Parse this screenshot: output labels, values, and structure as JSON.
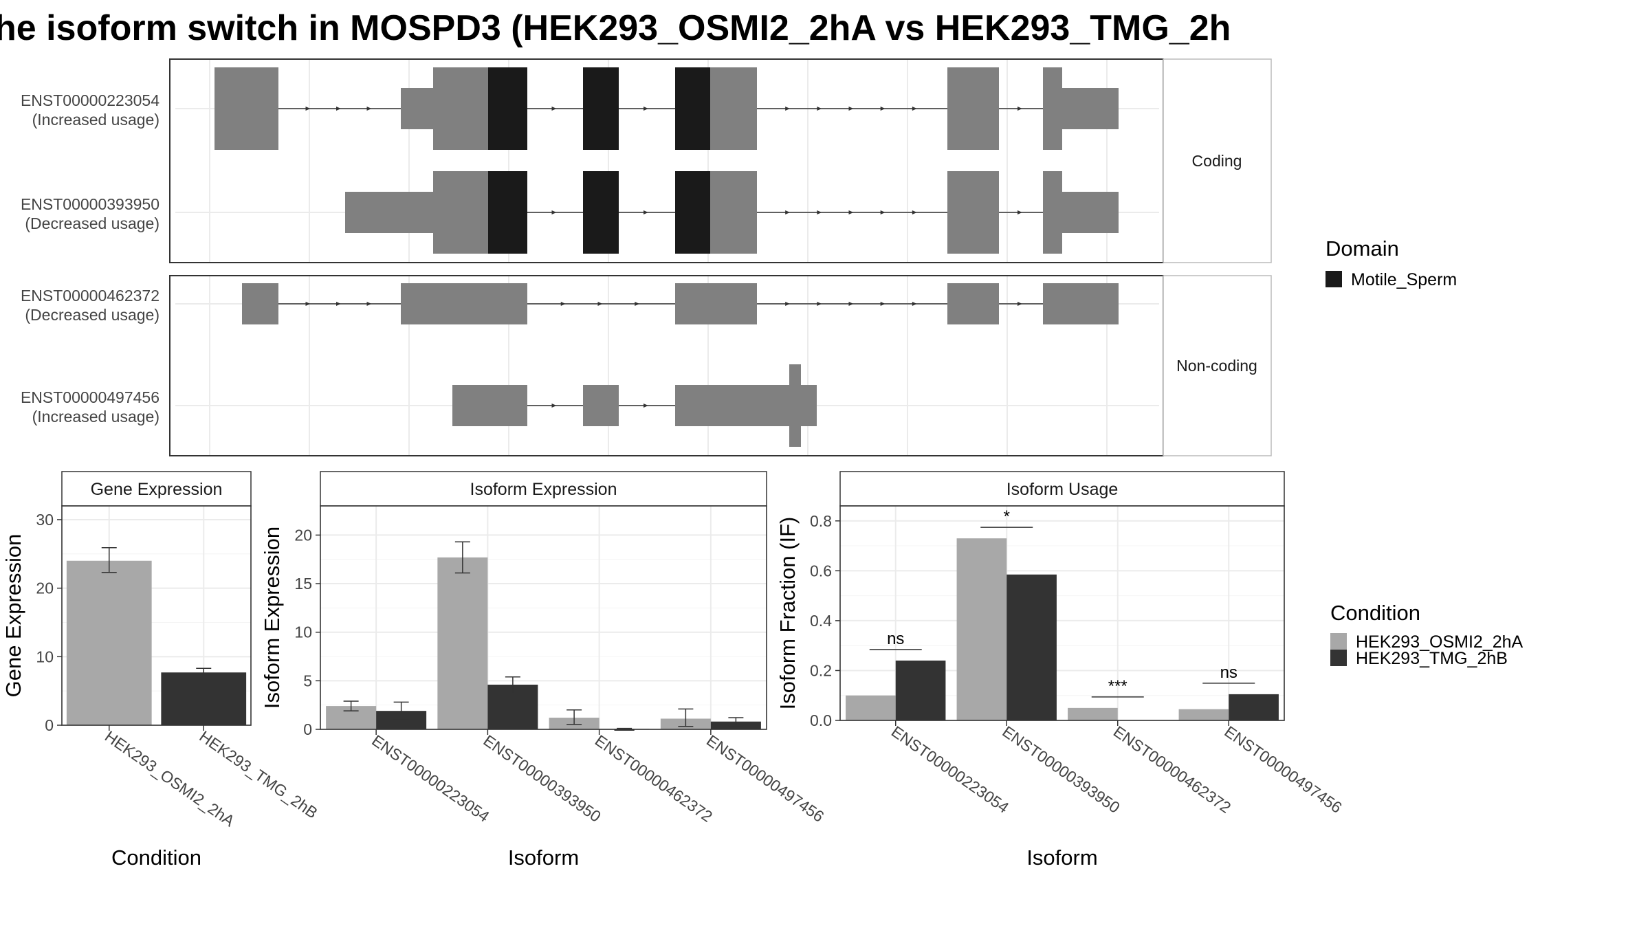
{
  "title": "he isoform switch in MOSPD3 (HEK293_OSMI2_2hA vs HEK293_TMG_2h",
  "colors": {
    "condA": "#a8a8a8",
    "condB": "#333333",
    "exon": "#808080",
    "domain": "#1a1a1a",
    "grid": "#ebebeb",
    "strip": "#ffffff"
  },
  "chart_data": [
    {
      "type": "diagram",
      "name": "transcript-structure",
      "facets": [
        {
          "label": "Coding",
          "transcripts": [
            {
              "id": "ENST00000223054",
              "note": "(Increased usage)"
            },
            {
              "id": "ENST00000393950",
              "note": "(Decreased usage)"
            }
          ]
        },
        {
          "label": "Non-coding",
          "transcripts": [
            {
              "id": "ENST00000462372",
              "note": "(Decreased usage)"
            },
            {
              "id": "ENST00000497456",
              "note": "(Increased usage)"
            }
          ]
        }
      ],
      "legend": {
        "title": "Domain",
        "entries": [
          "Motile_Sperm"
        ]
      }
    },
    {
      "type": "bar",
      "name": "gene-expression",
      "strip": "Gene Expression",
      "xlabel": "Condition",
      "ylabel": "Gene Expression",
      "ylim": [
        0,
        32
      ],
      "yticks": [
        0,
        10,
        20,
        30
      ],
      "categories": [
        "HEK293_OSMI2_2hA",
        "HEK293_TMG_2hB"
      ],
      "values": [
        24.0,
        7.7
      ],
      "errors": [
        [
          22.3,
          25.9
        ],
        [
          7.2,
          8.3
        ]
      ]
    },
    {
      "type": "bar",
      "name": "isoform-expression",
      "strip": "Isoform Expression",
      "xlabel": "Isoform",
      "ylabel": "Isoform Expression",
      "ylim": [
        0,
        23
      ],
      "yticks": [
        0,
        5,
        10,
        15,
        20
      ],
      "categories": [
        "ENST00000223054",
        "ENST00000393950",
        "ENST00000462372",
        "ENST00000497456"
      ],
      "series": [
        {
          "condition": "HEK293_OSMI2_2hA",
          "values": [
            2.4,
            17.7,
            1.2,
            1.1
          ],
          "errors": [
            [
              1.9,
              2.9
            ],
            [
              16.1,
              19.3
            ],
            [
              0.5,
              2.0
            ],
            [
              0.3,
              2.1
            ]
          ]
        },
        {
          "condition": "HEK293_TMG_2hB",
          "values": [
            1.9,
            4.6,
            0.05,
            0.8
          ],
          "errors": [
            [
              1.0,
              2.8
            ],
            [
              3.7,
              5.4
            ],
            [
              0.0,
              0.1
            ],
            [
              0.4,
              1.2
            ]
          ]
        }
      ]
    },
    {
      "type": "bar",
      "name": "isoform-usage",
      "strip": "Isoform Usage",
      "xlabel": "Isoform",
      "ylabel": "Isoform Fraction (IF)",
      "ylim": [
        0,
        0.86
      ],
      "yticks": [
        0.0,
        0.2,
        0.4,
        0.6,
        0.8
      ],
      "categories": [
        "ENST00000223054",
        "ENST00000393950",
        "ENST00000462372",
        "ENST00000497456"
      ],
      "series": [
        {
          "condition": "HEK293_OSMI2_2hA",
          "values": [
            0.1,
            0.73,
            0.05,
            0.045
          ]
        },
        {
          "condition": "HEK293_TMG_2hB",
          "values": [
            0.24,
            0.585,
            0.0,
            0.105
          ]
        }
      ],
      "significance": [
        "ns",
        "*",
        "***",
        "ns"
      ]
    }
  ],
  "condition_legend": {
    "title": "Condition",
    "entries": [
      "HEK293_OSMI2_2hA",
      "HEK293_TMG_2hB"
    ]
  }
}
